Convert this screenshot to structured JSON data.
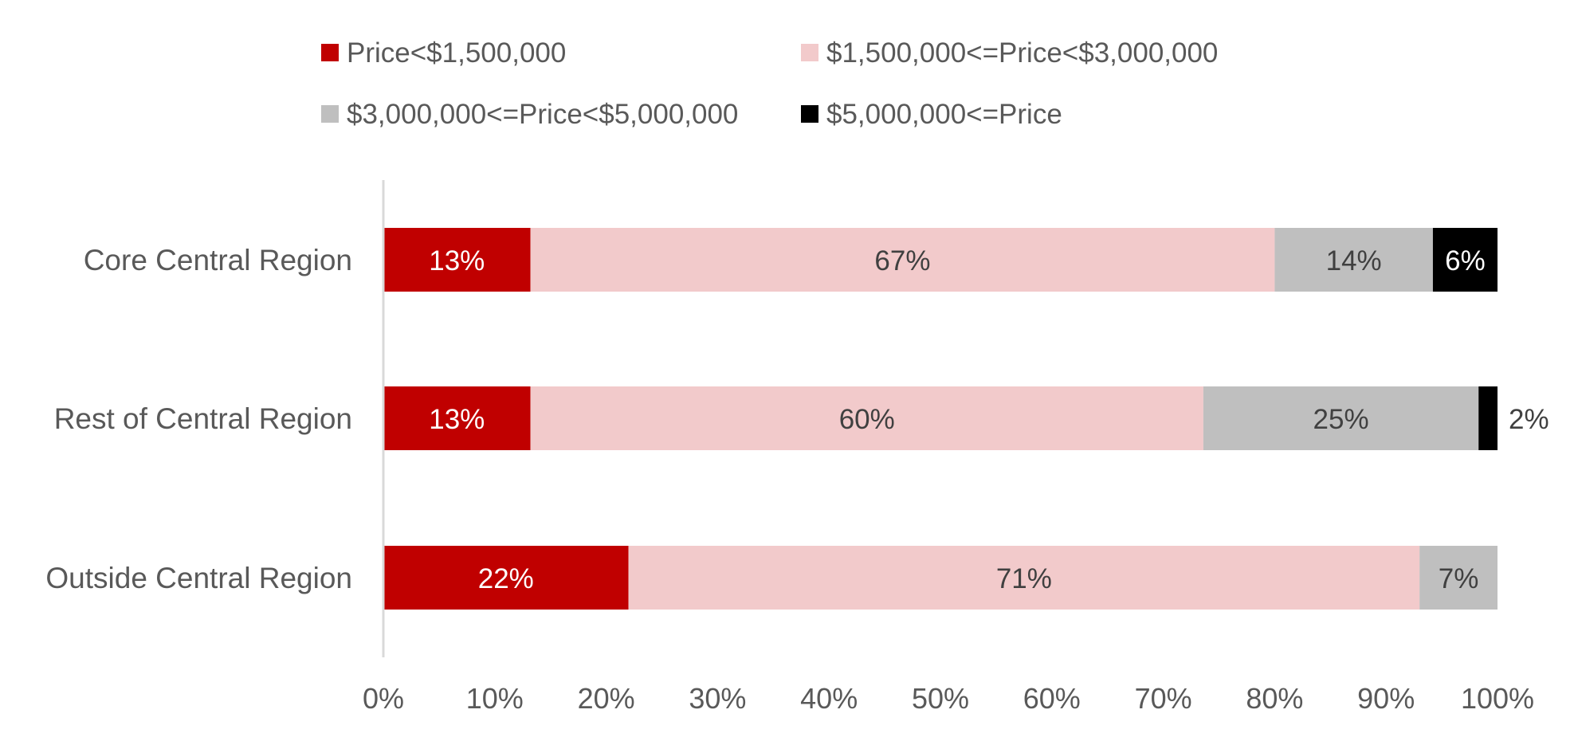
{
  "chart_data": {
    "type": "bar",
    "orientation": "horizontal",
    "stacked": "percent",
    "title": "",
    "xlabel": "",
    "ylabel": "",
    "xlim": [
      0,
      100
    ],
    "x_ticks": [
      "0%",
      "10%",
      "20%",
      "30%",
      "40%",
      "50%",
      "60%",
      "70%",
      "80%",
      "90%",
      "100%"
    ],
    "grid": false,
    "legend_position": "top",
    "categories": [
      "Core Central Region",
      "Rest of Central Region",
      "Outside Central Region"
    ],
    "series": [
      {
        "name": "Price<$1,500,000",
        "color": "#C00000",
        "label_color": "#ffffff",
        "values": [
          13.2,
          13.2,
          22.0
        ],
        "labels": [
          "13%",
          "13%",
          "22%"
        ]
      },
      {
        "name": "$1,500,000<=Price<$3,000,000",
        "color": "#F2CACB",
        "label_color": "#404040",
        "values": [
          66.8,
          60.4,
          71.0
        ],
        "labels": [
          "67%",
          "60%",
          "71%"
        ]
      },
      {
        "name": "$3,000,000<=Price<$5,000,000",
        "color": "#BFBFBF",
        "label_color": "#404040",
        "values": [
          14.2,
          24.7,
          7.0
        ],
        "labels": [
          "14%",
          "25%",
          "7%"
        ]
      },
      {
        "name": "$5,000,000<=Price",
        "color": "#000000",
        "label_color": "#ffffff",
        "values": [
          5.8,
          1.7,
          0
        ],
        "labels": [
          "6%",
          "2%",
          ""
        ]
      }
    ]
  }
}
